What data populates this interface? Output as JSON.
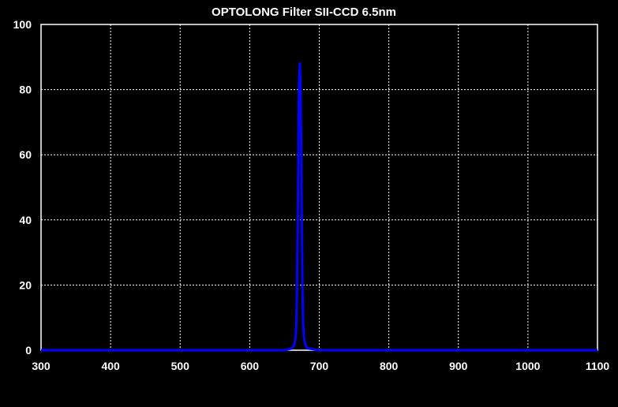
{
  "chart_data": {
    "type": "line",
    "title": "OPTOLONG Filter SII-CCD 6.5nm",
    "xlabel": "",
    "ylabel": "",
    "xlim": [
      300,
      1100
    ],
    "ylim": [
      0,
      100
    ],
    "xticks": [
      300,
      400,
      500,
      600,
      700,
      800,
      900,
      1000,
      1100
    ],
    "yticks": [
      0,
      20,
      40,
      60,
      80,
      100
    ],
    "grid": true,
    "background": "#000000",
    "grid_color": "#ffffff",
    "series": [
      {
        "color": "#0000ff",
        "x": [
          300,
          650,
          660,
          664,
          666,
          667,
          668,
          669,
          670,
          671,
          672,
          673,
          674,
          675,
          676,
          677,
          678,
          680,
          684,
          700,
          1100
        ],
        "y": [
          0,
          0,
          0.5,
          1.5,
          4,
          8,
          18,
          38,
          63,
          82,
          88,
          82,
          63,
          38,
          18,
          8,
          4,
          1.5,
          0.5,
          0,
          0
        ]
      }
    ]
  }
}
